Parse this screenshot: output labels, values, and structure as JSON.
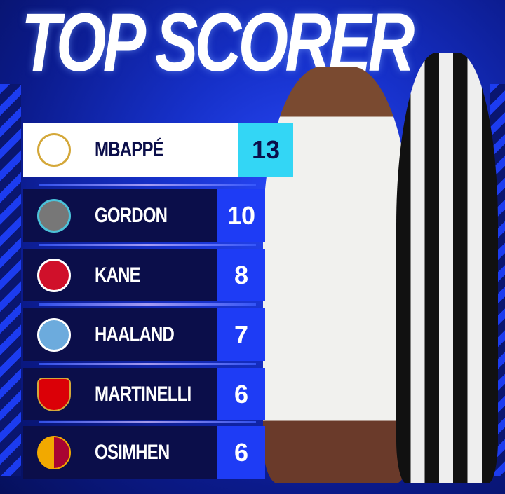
{
  "title": "TOP SCORER",
  "players": [
    {
      "name": "MBAPPÉ",
      "goals": "13",
      "club": "real-madrid-crest",
      "color": "#d4a83a"
    },
    {
      "name": "GORDON",
      "goals": "10",
      "club": "newcastle-crest",
      "color": "#555555"
    },
    {
      "name": "KANE",
      "goals": "8",
      "club": "bayern-crest",
      "color": "#d0102a"
    },
    {
      "name": "HAALAND",
      "goals": "7",
      "club": "man-city-crest",
      "color": "#6cabdd"
    },
    {
      "name": "MARTINELLI",
      "goals": "6",
      "club": "arsenal-crest",
      "color": "#db0007"
    },
    {
      "name": "OSIMHEN",
      "goals": "6",
      "club": "galatasaray-crest",
      "color": "#f2a900"
    }
  ]
}
